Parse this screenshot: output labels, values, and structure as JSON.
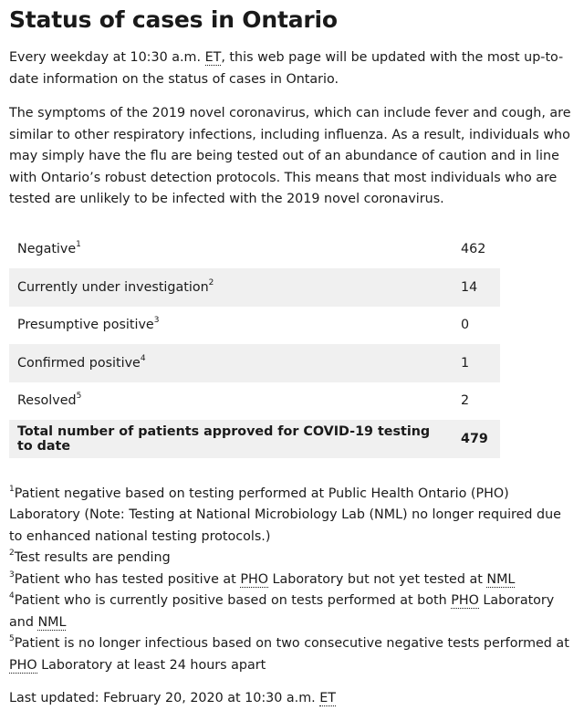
{
  "title": "Status of cases in Ontario",
  "intro": {
    "p1_text": "Every weekday at 10:30 a.m. ",
    "p1_abbr": "ET",
    "p1_rest": ", this web page will be updated with the most up-to-date information on the status of cases in Ontario.",
    "p2": "The symptoms of the 2019 novel coronavirus, which can include fever and cough, are similar to other respiratory infections, including influenza. As a result, individuals who may simply have the flu are being tested out of an abundance of caution and in line with Ontario’s robust detection protocols. This means that most individuals who are tested are unlikely to be infected with the 2019 novel coronavirus."
  },
  "table": {
    "rows": [
      {
        "label": "Negative",
        "sup": "1",
        "value": "462"
      },
      {
        "label": "Currently under investigation",
        "sup": "2",
        "value": "14"
      },
      {
        "label": "Presumptive positive",
        "sup": "3",
        "value": "0"
      },
      {
        "label": "Confirmed positive",
        "sup": "4",
        "value": "1"
      },
      {
        "label": "Resolved",
        "sup": "5",
        "value": "2"
      }
    ],
    "total_label": "Total number of patients approved for COVID-19 testing to date",
    "total_value": "479"
  },
  "footnotes": {
    "n1_sup": "1",
    "n1_text": "Patient negative based on testing performed at Public Health Ontario (PHO) Laboratory (Note: Testing at National Microbiology Lab (NML) no longer required due to enhanced national testing protocols.)",
    "n2_sup": "2",
    "n2_text": "Test results are pending",
    "n3_sup": "3",
    "n3_a": "Patient who has tested positive at ",
    "n3_abbr1": "PHO",
    "n3_b": " Laboratory but not yet tested at ",
    "n3_abbr2": "NML",
    "n4_sup": "4",
    "n4_a": "Patient who is currently positive based on tests performed at both ",
    "n4_abbr1": "PHO",
    "n4_b": " Laboratory and ",
    "n4_abbr2": "NML",
    "n5_sup": "5",
    "n5_a": "Patient is no longer infectious based on two consecutive negative tests performed at ",
    "n5_abbr": "PHO",
    "n5_b": " Laboratory at least 24 hours apart"
  },
  "last_updated": {
    "text": "Last updated: February 20, 2020 at 10:30 a.m. ",
    "abbr": "ET"
  }
}
